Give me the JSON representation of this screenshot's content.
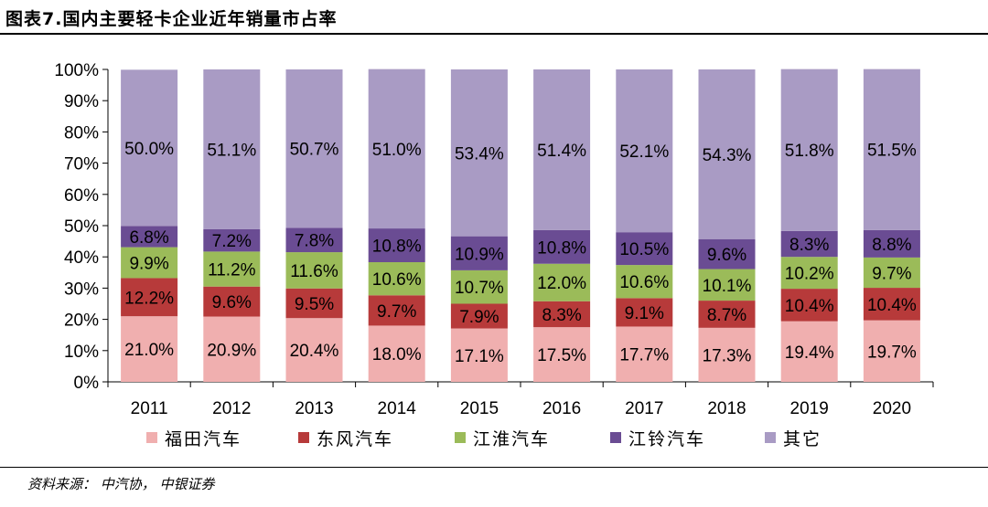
{
  "title": "图表7.国内主要轻卡企业近年销量市占率",
  "source": "资料来源： 中汽协， 中银证券",
  "chart_data": {
    "type": "bar",
    "stacked": true,
    "categories": [
      "2011",
      "2012",
      "2013",
      "2014",
      "2015",
      "2016",
      "2017",
      "2018",
      "2019",
      "2020"
    ],
    "ylim": [
      0,
      100
    ],
    "yticks": [
      "0%",
      "10%",
      "20%",
      "30%",
      "40%",
      "50%",
      "60%",
      "70%",
      "80%",
      "90%",
      "100%"
    ],
    "legend_position": "bottom",
    "series": [
      {
        "name": "福田汽车",
        "color": "#F0AFAF",
        "values": [
          21.0,
          20.9,
          20.4,
          18.0,
          17.1,
          17.5,
          17.7,
          17.3,
          19.4,
          19.7
        ],
        "labels": [
          "21.0%",
          "20.9%",
          "20.4%",
          "18.0%",
          "17.1%",
          "17.5%",
          "17.7%",
          "17.3%",
          "19.4%",
          "19.7%"
        ]
      },
      {
        "name": "东风汽车",
        "color": "#B73A3A",
        "values": [
          12.2,
          9.6,
          9.5,
          9.7,
          7.9,
          8.3,
          9.1,
          8.7,
          10.4,
          10.4
        ],
        "labels": [
          "12.2%",
          "9.6%",
          "9.5%",
          "9.7%",
          "7.9%",
          "8.3%",
          "9.1%",
          "8.7%",
          "10.4%",
          "10.4%"
        ]
      },
      {
        "name": "江淮汽车",
        "color": "#9BBB59",
        "values": [
          9.9,
          11.2,
          11.6,
          10.6,
          10.7,
          12.0,
          10.6,
          10.1,
          10.2,
          9.7
        ],
        "labels": [
          "9.9%",
          "11.2%",
          "11.6%",
          "10.6%",
          "10.7%",
          "12.0%",
          "10.6%",
          "10.1%",
          "10.2%",
          "9.7%"
        ]
      },
      {
        "name": "江铃汽车",
        "color": "#6A4C93",
        "values": [
          6.8,
          7.2,
          7.8,
          10.8,
          10.9,
          10.8,
          10.5,
          9.6,
          8.3,
          8.8
        ],
        "labels": [
          "6.8%",
          "7.2%",
          "7.8%",
          "10.8%",
          "10.9%",
          "10.8%",
          "10.5%",
          "9.6%",
          "8.3%",
          "8.8%"
        ]
      },
      {
        "name": "其它",
        "color": "#A99BC4",
        "values": [
          50.0,
          51.1,
          50.7,
          51.0,
          53.4,
          51.4,
          52.1,
          54.3,
          51.8,
          51.5
        ],
        "labels": [
          "50.0%",
          "51.1%",
          "50.7%",
          "51.0%",
          "53.4%",
          "51.4%",
          "52.1%",
          "54.3%",
          "51.8%",
          "51.5%"
        ]
      }
    ]
  }
}
